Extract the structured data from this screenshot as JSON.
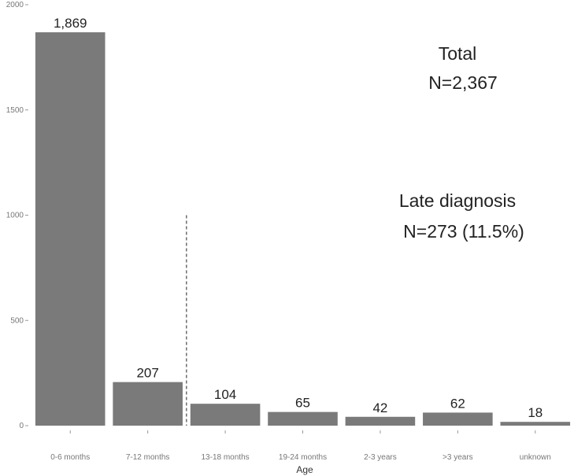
{
  "chart_data": {
    "type": "bar",
    "categories": [
      "0-6 months",
      "7-12 months",
      "13-18 months",
      "19-24 months",
      "2-3 years",
      ">3 years",
      "unknown"
    ],
    "values": [
      1869,
      207,
      104,
      65,
      42,
      62,
      18
    ],
    "value_labels": [
      "1,869",
      "207",
      "104",
      "65",
      "42",
      "62",
      "18"
    ],
    "xlabel": "Age",
    "ylabel": "",
    "ylim": [
      0,
      2000
    ],
    "yticks": [
      0,
      500,
      1000,
      1500,
      2000
    ],
    "bar_color": "#7a7a7a",
    "grid": false,
    "annotations": {
      "total_title": "Total",
      "total_value": "N=2,367",
      "late_title": "Late diagnosis",
      "late_value": "N=273 (11.5%)"
    },
    "reference_line": {
      "between_categories": [
        "7-12 months",
        "13-18 months"
      ],
      "y_top": 1000,
      "style": "dashed"
    }
  }
}
